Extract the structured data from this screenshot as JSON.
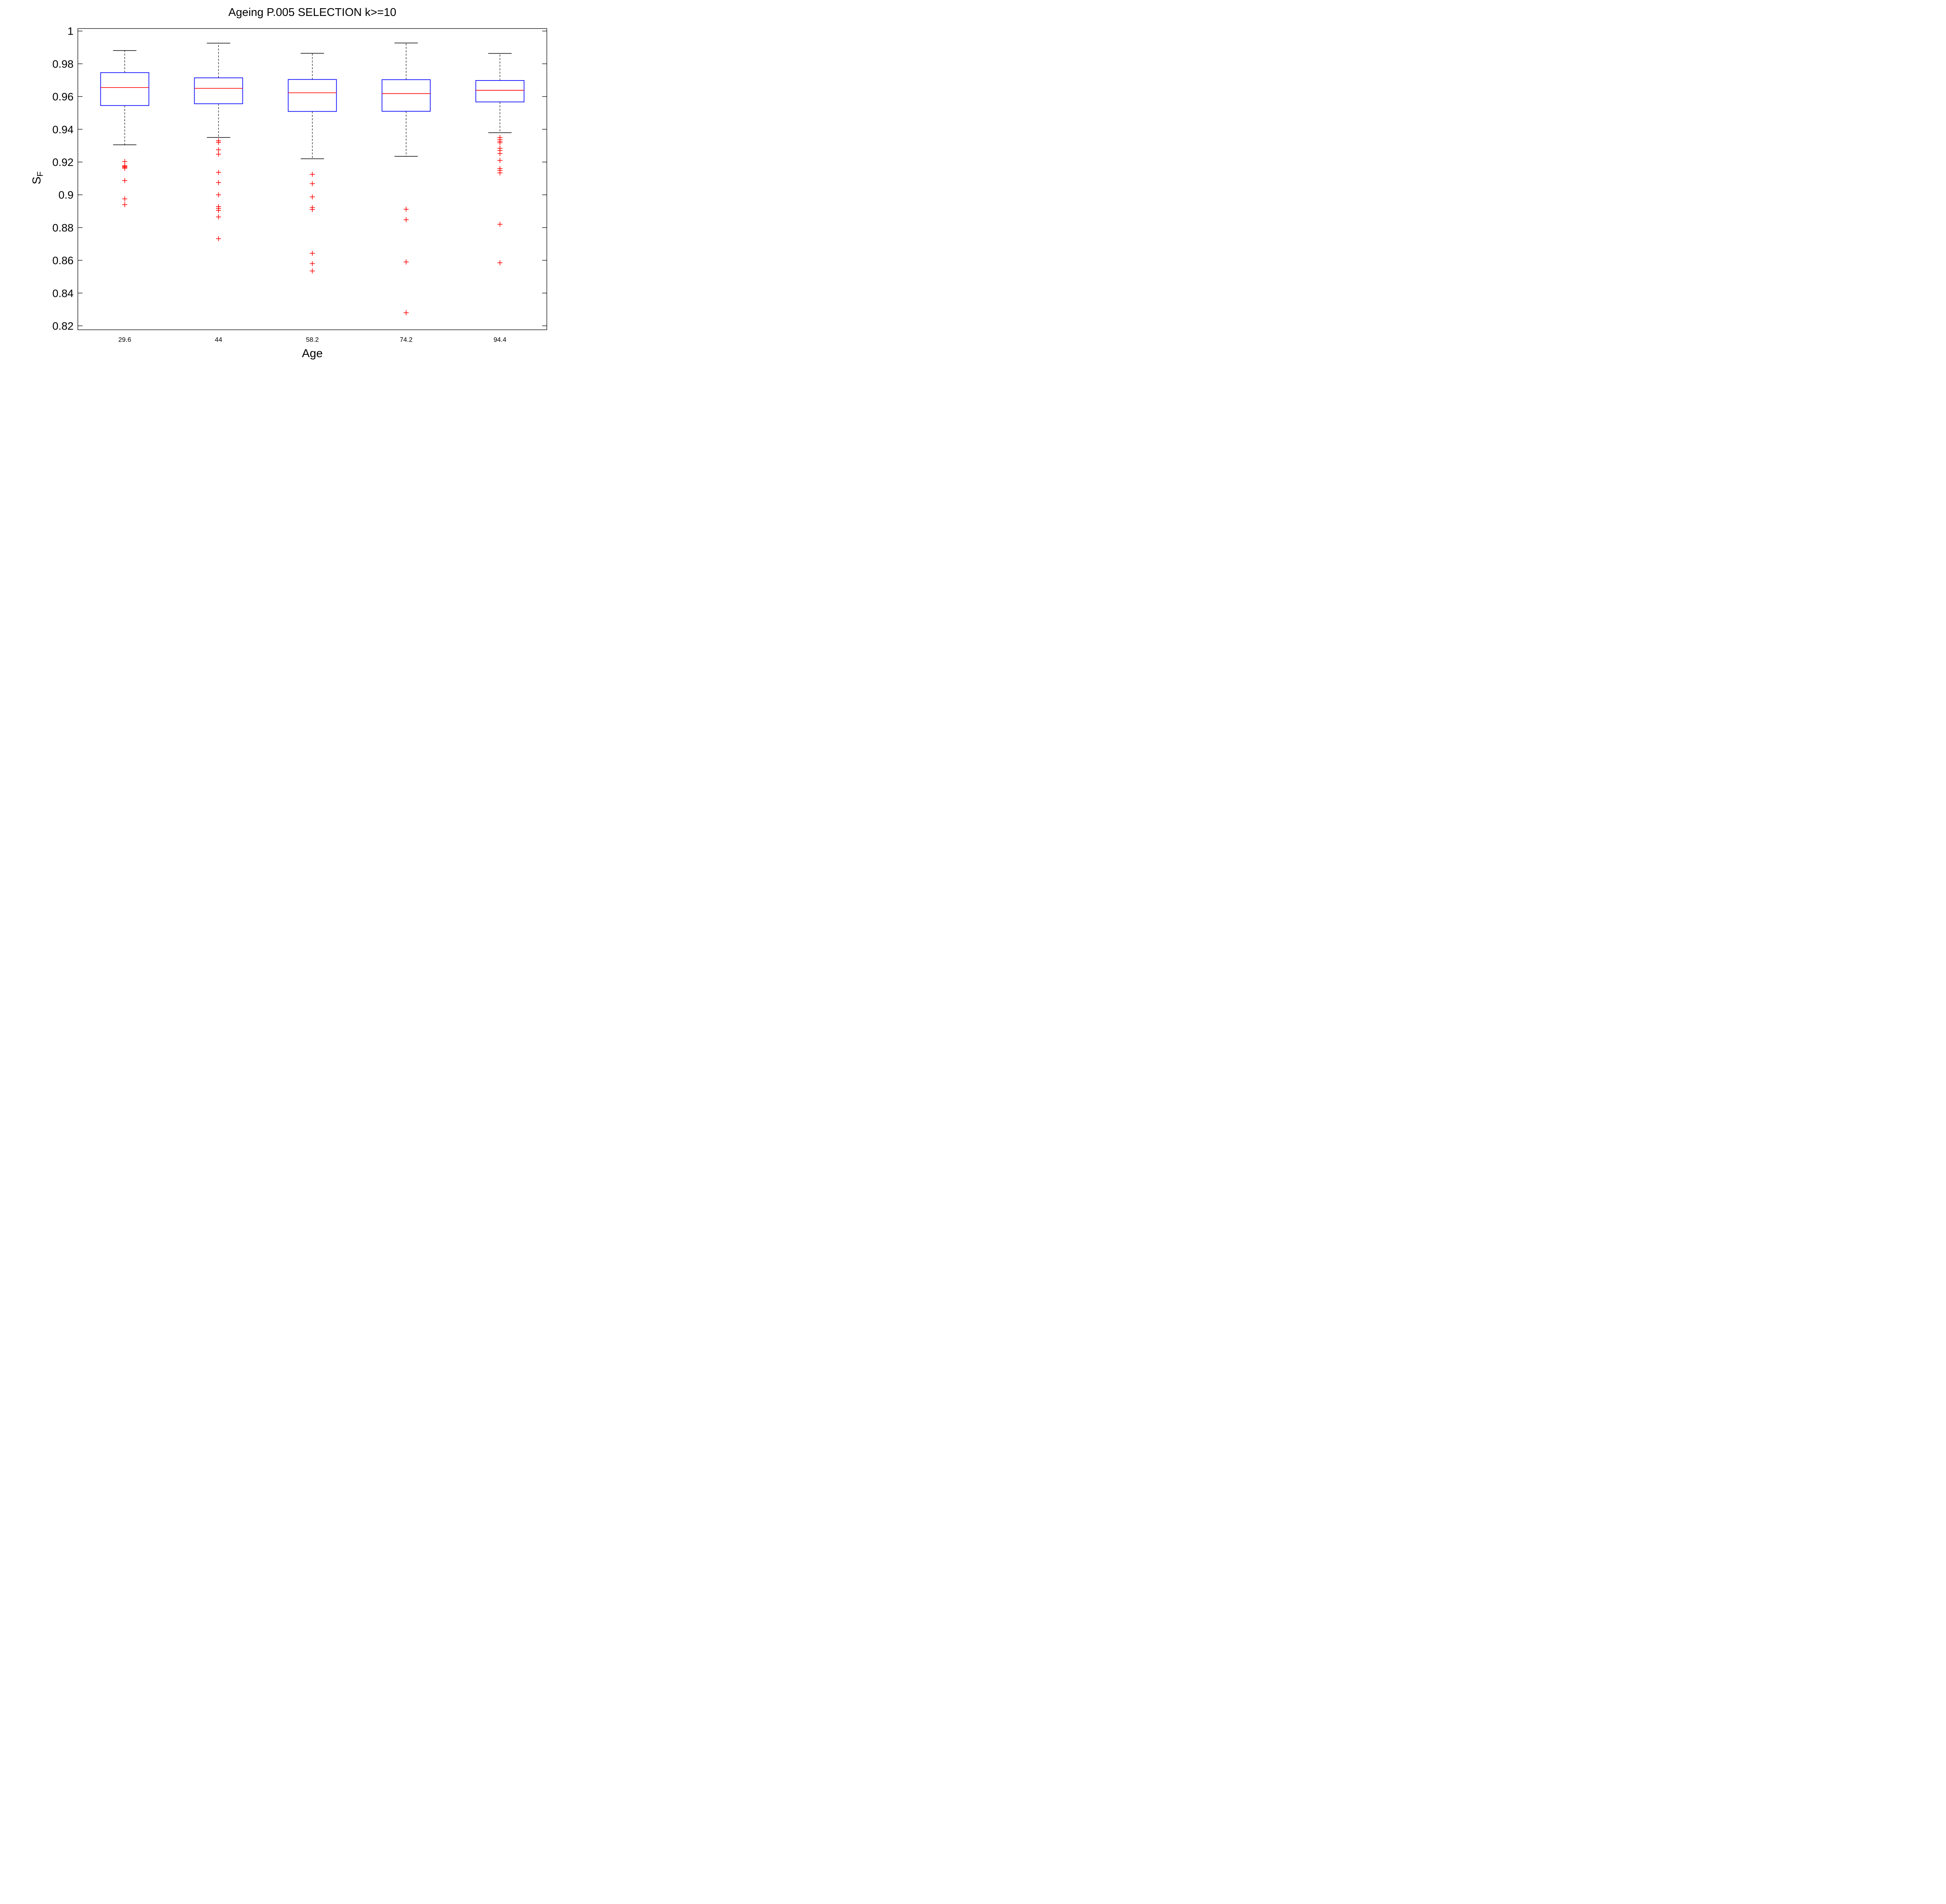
{
  "figure": {
    "background": "#ffffff"
  },
  "chart_data": {
    "type": "boxplot",
    "title": "Ageing P.005 SELECTION k>=10",
    "xlabel": "Age",
    "ylabel": {
      "main": "S",
      "subscript": "F"
    },
    "categories": [
      "29.6",
      "44",
      "58.2",
      "74.2",
      "94.4"
    ],
    "ylim": [
      0.8176,
      1.0015
    ],
    "grid": false,
    "legend": null,
    "yticks": {
      "values": [
        1,
        0.98,
        0.96,
        0.94,
        0.92,
        0.9,
        0.88,
        0.86,
        0.84,
        0.82
      ],
      "labels": [
        "1",
        "0.98",
        "0.96",
        "0.94",
        "0.92",
        "0.9",
        "0.88",
        "0.86",
        "0.84",
        "0.82"
      ]
    },
    "colors": {
      "box": "#0000ff",
      "median": "#ff0000",
      "outliers": "#ff0000",
      "whisker": "#000000",
      "axis": "#000000"
    },
    "series": [
      {
        "category": "29.6",
        "whisker_low": 0.9305,
        "q1": 0.9545,
        "median": 0.9655,
        "q3": 0.9746,
        "whisker_high": 0.9881,
        "outliers": [
          0.9203,
          0.9178,
          0.9172,
          0.9168,
          0.9162,
          0.9087,
          0.8975,
          0.894
        ]
      },
      {
        "category": "44",
        "whisker_low": 0.935,
        "q1": 0.9556,
        "median": 0.965,
        "q3": 0.9714,
        "whisker_high": 0.9926,
        "outliers": [
          0.933,
          0.932,
          0.9275,
          0.9248,
          0.9137,
          0.9075,
          0.9,
          0.8928,
          0.8917,
          0.8905,
          0.8865,
          0.8732
        ]
      },
      {
        "category": "58.2",
        "whisker_low": 0.922,
        "q1": 0.9509,
        "median": 0.9623,
        "q3": 0.9704,
        "whisker_high": 0.9864,
        "outliers": [
          0.9125,
          0.9068,
          0.8987,
          0.8922,
          0.891,
          0.8643,
          0.858,
          0.8535
        ]
      },
      {
        "category": "74.2",
        "whisker_low": 0.9235,
        "q1": 0.951,
        "median": 0.9618,
        "q3": 0.9703,
        "whisker_high": 0.9927,
        "outliers": [
          0.8912,
          0.8848,
          0.859,
          0.828
        ]
      },
      {
        "category": "94.4",
        "whisker_low": 0.9379,
        "q1": 0.9567,
        "median": 0.9638,
        "q3": 0.9698,
        "whisker_high": 0.9863,
        "outliers": [
          0.935,
          0.9338,
          0.9327,
          0.9318,
          0.9284,
          0.9271,
          0.9252,
          0.921,
          0.916,
          0.9149,
          0.9134,
          0.882,
          0.8585
        ]
      }
    ]
  }
}
